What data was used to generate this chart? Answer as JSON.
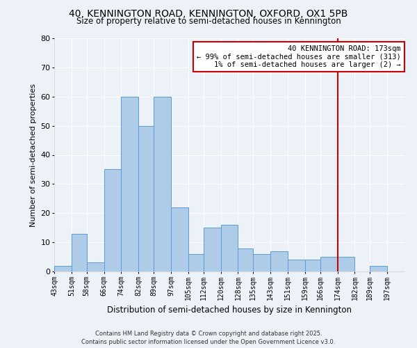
{
  "title": "40, KENNINGTON ROAD, KENNINGTON, OXFORD, OX1 5PB",
  "subtitle": "Size of property relative to semi-detached houses in Kennington",
  "xlabel": "Distribution of semi-detached houses by size in Kennington",
  "ylabel": "Number of semi-detached properties",
  "bin_labels": [
    "43sqm",
    "51sqm",
    "58sqm",
    "66sqm",
    "74sqm",
    "82sqm",
    "89sqm",
    "97sqm",
    "105sqm",
    "112sqm",
    "120sqm",
    "128sqm",
    "135sqm",
    "143sqm",
    "151sqm",
    "159sqm",
    "166sqm",
    "174sqm",
    "182sqm",
    "189sqm",
    "197sqm"
  ],
  "bar_values": [
    2,
    13,
    3,
    35,
    60,
    50,
    60,
    22,
    6,
    15,
    16,
    8,
    6,
    7,
    4,
    4,
    5,
    5,
    0,
    2,
    0
  ],
  "bar_color": "#aecce8",
  "bar_edge_color": "#5b9bd5",
  "vline_x_index": 17,
  "vline_color": "#cc0000",
  "annotation_title": "40 KENNINGTON ROAD: 173sqm",
  "annotation_line1": "← 99% of semi-detached houses are smaller (313)",
  "annotation_line2": "1% of semi-detached houses are larger (2) →",
  "annotation_box_color": "#ffffff",
  "annotation_box_edge": "#cc0000",
  "ylim": [
    0,
    80
  ],
  "yticks": [
    0,
    10,
    20,
    30,
    40,
    50,
    60,
    70,
    80
  ],
  "footer1": "Contains HM Land Registry data © Crown copyright and database right 2025.",
  "footer2": "Contains public sector information licensed under the Open Government Licence v3.0.",
  "bg_color": "#edf2f9",
  "grid_color": "#ffffff",
  "bin_edges": [
    43,
    51,
    58,
    66,
    74,
    82,
    89,
    97,
    105,
    112,
    120,
    128,
    135,
    143,
    151,
    159,
    166,
    174,
    182,
    189,
    197,
    205
  ]
}
